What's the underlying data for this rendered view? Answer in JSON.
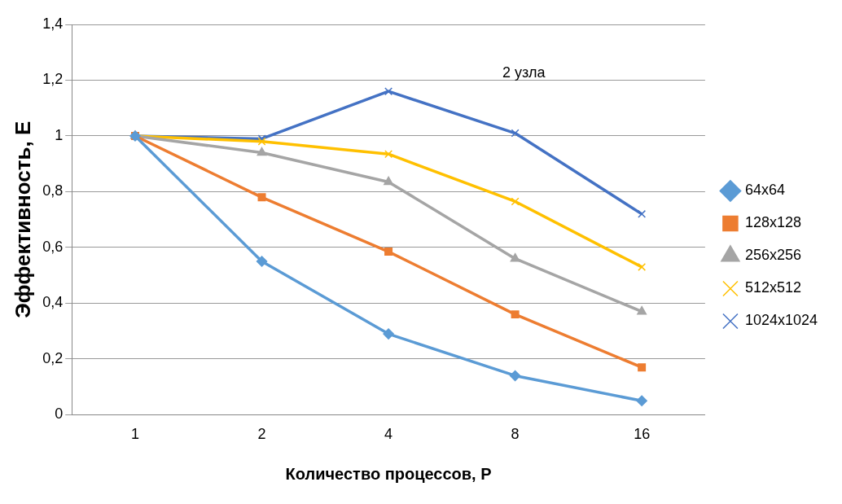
{
  "chart_data": {
    "type": "line",
    "xlabel": "Количество процессов, P",
    "ylabel": "Эффективность, E",
    "categories": [
      "1",
      "2",
      "4",
      "8",
      "16"
    ],
    "series": [
      {
        "name": "64x64",
        "color": "#5b9bd5",
        "marker": "diamond",
        "values": [
          1,
          0.55,
          0.29,
          0.14,
          0.05
        ]
      },
      {
        "name": "128x128",
        "color": "#ed7d31",
        "marker": "square",
        "values": [
          1,
          0.78,
          0.585,
          0.36,
          0.17
        ]
      },
      {
        "name": "256x256",
        "color": "#a5a5a5",
        "marker": "triangle",
        "values": [
          1,
          0.94,
          0.835,
          0.56,
          0.37
        ]
      },
      {
        "name": "512x512",
        "color": "#ffc000",
        "marker": "cross",
        "values": [
          1,
          0.98,
          0.935,
          0.765,
          0.53
        ]
      },
      {
        "name": "1024x1024",
        "color": "#4472c4",
        "marker": "cross",
        "values": [
          1,
          0.99,
          1.16,
          1.01,
          0.72
        ]
      }
    ],
    "ylim": [
      0,
      1.4
    ],
    "yticks": [
      {
        "value": 0,
        "label": "0"
      },
      {
        "value": 0.2,
        "label": "0,2"
      },
      {
        "value": 0.4,
        "label": "0,4"
      },
      {
        "value": 0.6,
        "label": "0,6"
      },
      {
        "value": 0.8,
        "label": "0,8"
      },
      {
        "value": 1,
        "label": "1"
      },
      {
        "value": 1.2,
        "label": "1,2"
      },
      {
        "value": 1.4,
        "label": "1,4"
      }
    ],
    "grid": "y",
    "legend": "right",
    "line_style": "solid",
    "annotations": [
      "2 узла"
    ]
  }
}
